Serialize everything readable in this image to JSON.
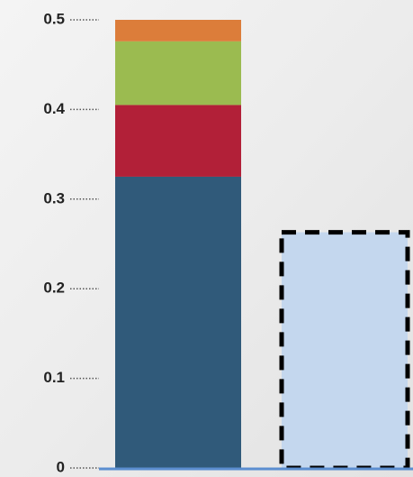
{
  "chart_data": {
    "type": "bar",
    "stacked": true,
    "categories": [
      null,
      null
    ],
    "series": [
      {
        "color": "#305a7a",
        "values": [
          0.325,
          null
        ]
      },
      {
        "color": "#b22038",
        "values": [
          0.08,
          null
        ]
      },
      {
        "color": "#9bbb50",
        "values": [
          0.071,
          null
        ]
      },
      {
        "color": "#dc7d3a",
        "values": [
          0.024,
          null
        ]
      },
      {
        "color": "#c4d7ee",
        "edgecolor": "#000000",
        "linestyle": "dashed",
        "values": [
          null,
          0.263
        ]
      }
    ],
    "ylim": [
      0,
      0.5
    ],
    "yticks": [
      0,
      0.1,
      0.2,
      0.3,
      0.4,
      0.5
    ],
    "grid": false
  }
}
